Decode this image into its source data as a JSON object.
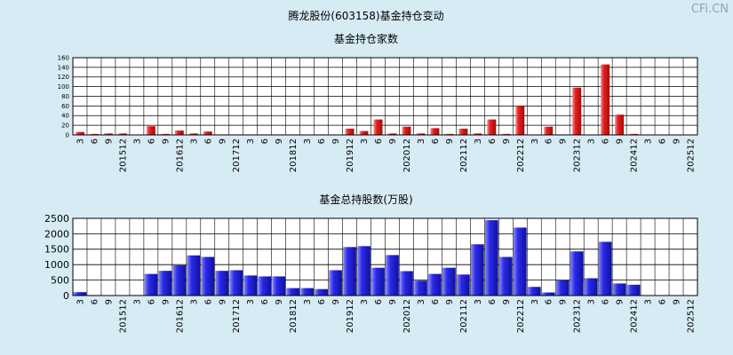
{
  "page_title": "腾龙股份(603158)基金持仓变动",
  "watermark": "CFi.CN",
  "chart_data": [
    {
      "type": "bar",
      "title": "基金持仓家数",
      "ylim": [
        0,
        160
      ],
      "yticks": [
        0,
        20,
        40,
        60,
        80,
        100,
        120,
        140,
        160
      ],
      "grid": true,
      "color": "#e02020",
      "categories": [
        "201503",
        "201506",
        "201509",
        "201512",
        "201603",
        "201606",
        "201609",
        "201612",
        "201703",
        "201706",
        "201709",
        "201712",
        "201803",
        "201806",
        "201809",
        "201812",
        "201903",
        "201906",
        "201909",
        "201912",
        "202003",
        "202006",
        "202009",
        "202012",
        "202103",
        "202106",
        "202109",
        "202112",
        "202203",
        "202206",
        "202209",
        "202212",
        "202303",
        "202306",
        "202309",
        "202312",
        "202403",
        "202406",
        "202409",
        "202412",
        "202503",
        "202506",
        "202509",
        "202512"
      ],
      "x_tick_labels": [
        "3",
        "6",
        "9",
        "201512",
        "3",
        "6",
        "9",
        "201612",
        "3",
        "6",
        "9",
        "201712",
        "3",
        "6",
        "9",
        "201812",
        "3",
        "6",
        "9",
        "201912",
        "3",
        "6",
        "9",
        "202012",
        "3",
        "6",
        "9",
        "202112",
        "3",
        "6",
        "9",
        "202212",
        "3",
        "6",
        "9",
        "202312",
        "3",
        "6",
        "9",
        "202412",
        "3",
        "6",
        "9",
        "202512"
      ],
      "values": [
        6,
        2,
        3,
        3,
        0,
        18,
        2,
        9,
        3,
        7,
        1,
        1,
        1,
        1,
        1,
        1,
        0,
        1,
        0,
        13,
        8,
        32,
        3,
        17,
        3,
        14,
        2,
        13,
        3,
        32,
        2,
        60,
        0,
        17,
        1,
        98,
        0,
        146,
        42,
        2,
        0,
        0,
        0,
        0
      ]
    },
    {
      "type": "bar",
      "title": "基金总持股数(万股)",
      "ylim": [
        0,
        2500
      ],
      "yticks": [
        0,
        500,
        1000,
        1500,
        2000,
        2500
      ],
      "grid": true,
      "color": "#2020dd",
      "categories": [
        "201503",
        "201506",
        "201509",
        "201512",
        "201603",
        "201606",
        "201609",
        "201612",
        "201703",
        "201706",
        "201709",
        "201712",
        "201803",
        "201806",
        "201809",
        "201812",
        "201903",
        "201906",
        "201909",
        "201912",
        "202003",
        "202006",
        "202009",
        "202012",
        "202103",
        "202106",
        "202109",
        "202112",
        "202203",
        "202206",
        "202209",
        "202212",
        "202303",
        "202306",
        "202309",
        "202312",
        "202403",
        "202406",
        "202409",
        "202412",
        "202503",
        "202506",
        "202509",
        "202512"
      ],
      "x_tick_labels": [
        "3",
        "6",
        "9",
        "201512",
        "3",
        "6",
        "9",
        "201612",
        "3",
        "6",
        "9",
        "201712",
        "3",
        "6",
        "9",
        "201812",
        "3",
        "6",
        "9",
        "201912",
        "3",
        "6",
        "9",
        "202012",
        "3",
        "6",
        "9",
        "202112",
        "3",
        "6",
        "9",
        "202212",
        "3",
        "6",
        "9",
        "202312",
        "3",
        "6",
        "9",
        "202412",
        "3",
        "6",
        "9",
        "202512"
      ],
      "values": [
        110,
        15,
        10,
        10,
        15,
        700,
        800,
        980,
        1300,
        1250,
        800,
        820,
        650,
        620,
        620,
        240,
        240,
        210,
        820,
        1570,
        1600,
        900,
        1310,
        790,
        480,
        700,
        900,
        680,
        1660,
        2440,
        1250,
        2200,
        280,
        100,
        490,
        1430,
        560,
        1740,
        390,
        350,
        0,
        0,
        0,
        0
      ]
    }
  ]
}
